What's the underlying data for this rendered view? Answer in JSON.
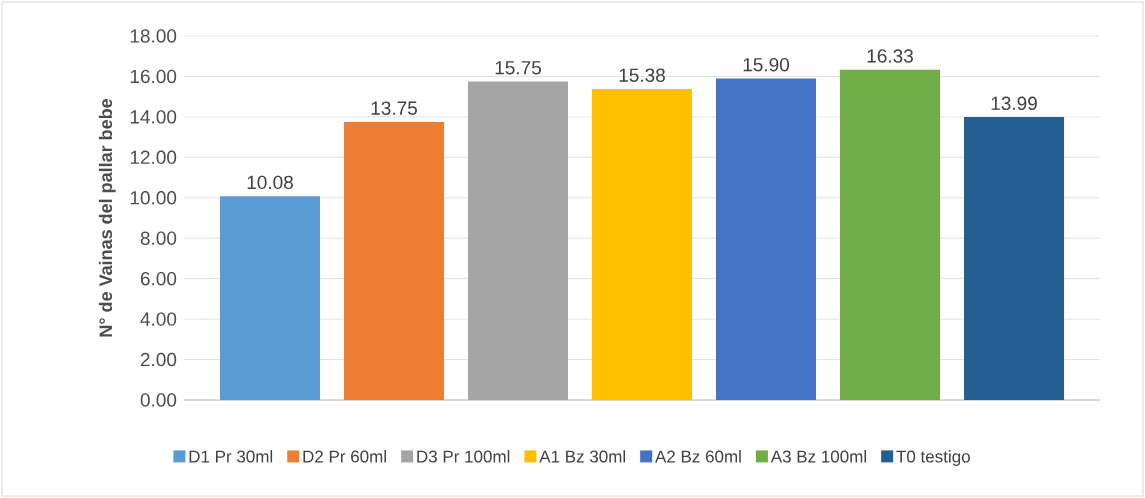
{
  "chart_data": {
    "type": "bar",
    "ylabel": "N° de Vainas  del pallar bebe",
    "categories": [
      null
    ],
    "series": [
      {
        "name": "D1   Pr 30ml",
        "color": "#5b9bd5",
        "values": [
          10.08
        ],
        "value_labels": [
          "10.08"
        ]
      },
      {
        "name": "D2 Pr  60ml",
        "color": "#ed7d31",
        "values": [
          13.75
        ],
        "value_labels": [
          "13.75"
        ]
      },
      {
        "name": "D3 Pr 100ml",
        "color": "#a5a5a5",
        "values": [
          15.75
        ],
        "value_labels": [
          "15.75"
        ]
      },
      {
        "name": "A1 Bz  30ml",
        "color": "#ffc000",
        "values": [
          15.38
        ],
        "value_labels": [
          "15.38"
        ]
      },
      {
        "name": "A2 Bz  60ml",
        "color": "#4472c4",
        "values": [
          15.9
        ],
        "value_labels": [
          "15.90"
        ]
      },
      {
        "name": "A3 Bz  100ml",
        "color": "#70ad47",
        "values": [
          16.33
        ],
        "value_labels": [
          "16.33"
        ]
      },
      {
        "name": "T0 testigo",
        "color": "#255e91",
        "values": [
          13.99
        ],
        "value_labels": [
          "13.99"
        ]
      }
    ],
    "ylim": [
      0,
      18
    ],
    "yticks": [
      {
        "value": 0,
        "label": "0.00"
      },
      {
        "value": 2,
        "label": "2.00"
      },
      {
        "value": 4,
        "label": "4.00"
      },
      {
        "value": 6,
        "label": "6.00"
      },
      {
        "value": 8,
        "label": "8.00"
      },
      {
        "value": 10,
        "label": "10.00"
      },
      {
        "value": 12,
        "label": "12.00"
      },
      {
        "value": 14,
        "label": "14.00"
      },
      {
        "value": 16,
        "label": "16.00"
      },
      {
        "value": 18,
        "label": "18.00"
      }
    ],
    "grid": "y",
    "legend": "bottom"
  }
}
